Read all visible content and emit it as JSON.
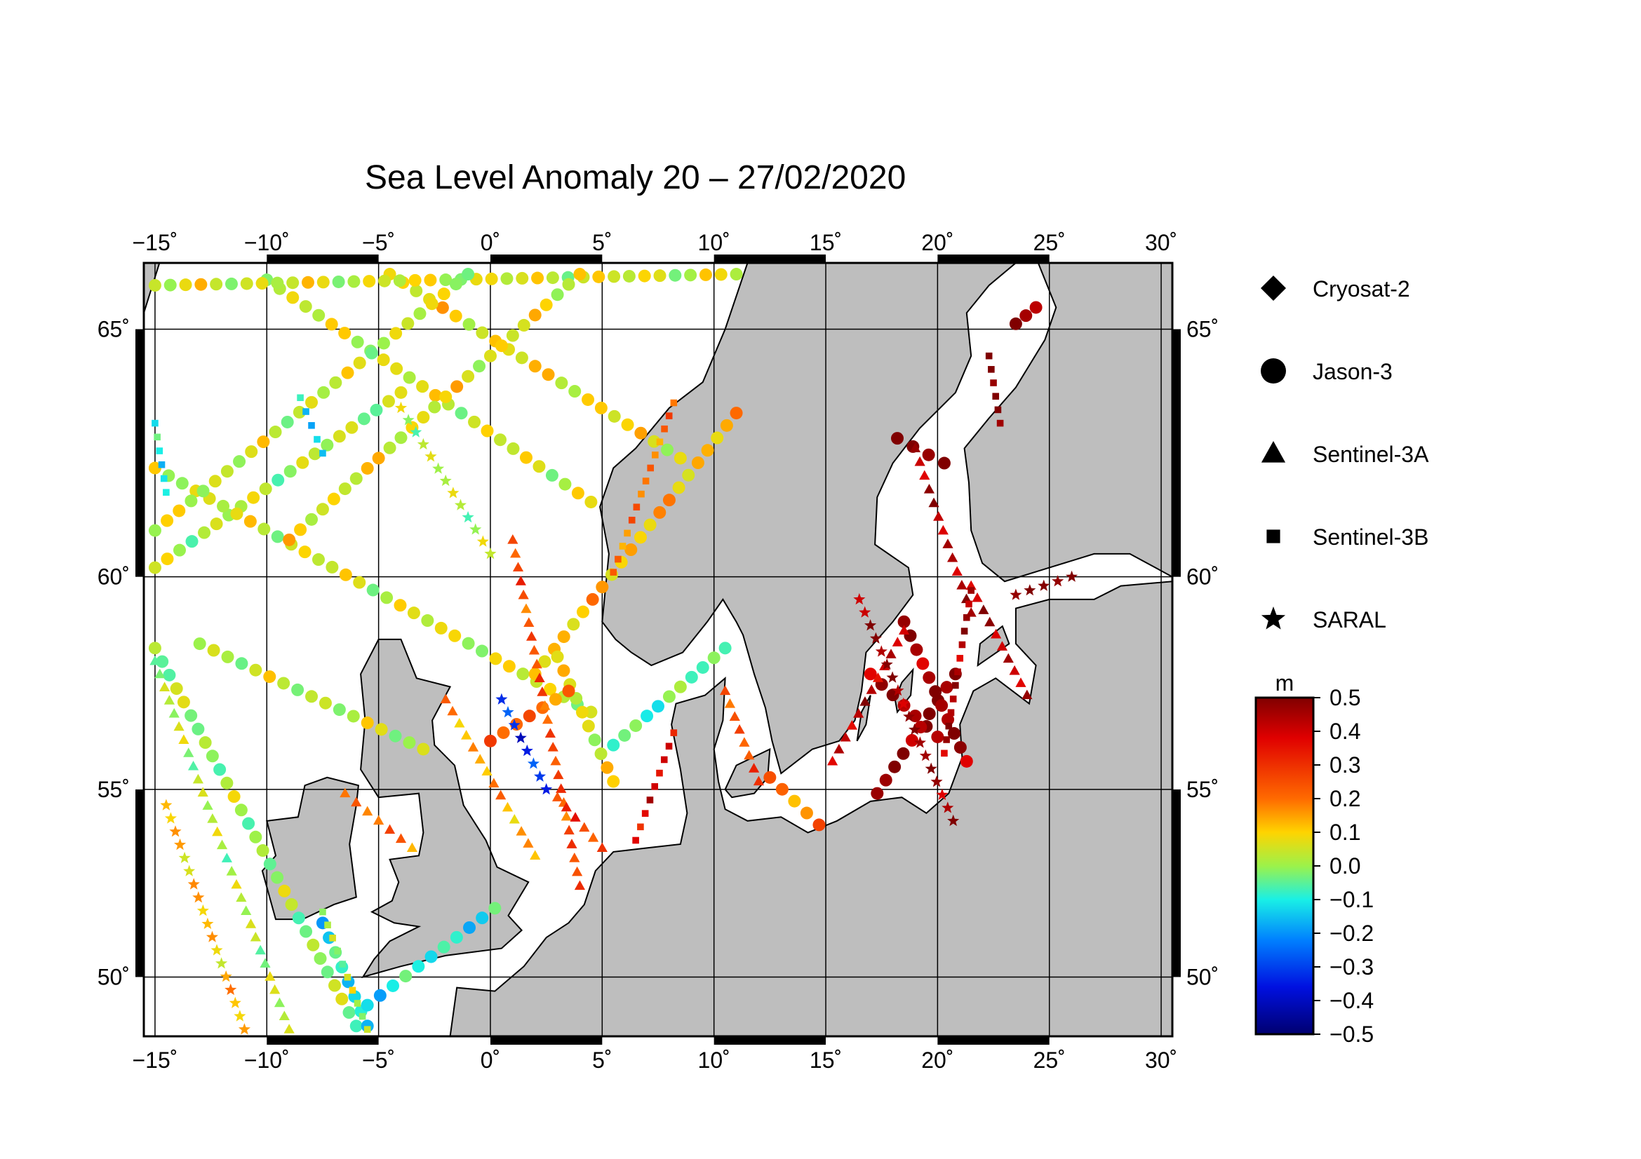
{
  "title": "Sea Level Anomaly 20 – 27/02/2020",
  "map": {
    "lon_range": [
      -15.5,
      30.5
    ],
    "lat_range": [
      48.3,
      66.2
    ],
    "lon_ticks": [
      -15,
      -10,
      -5,
      0,
      5,
      10,
      15,
      20,
      25,
      30
    ],
    "lat_ticks": [
      50,
      55,
      60,
      65
    ],
    "lon_tick_labels": [
      "−15˚",
      "−10˚",
      "−5˚",
      "0˚",
      "5˚",
      "10˚",
      "15˚",
      "20˚",
      "25˚",
      "30˚"
    ],
    "lat_tick_labels": [
      "50˚",
      "55˚",
      "60˚",
      "65˚"
    ],
    "land_color": "#bebebe",
    "sea_color": "#ffffff"
  },
  "legend": {
    "items": [
      {
        "label": "Cryosat-2",
        "symbol": "diamond"
      },
      {
        "label": "Jason-3",
        "symbol": "circle"
      },
      {
        "label": "Sentinel-3A",
        "symbol": "triangle"
      },
      {
        "label": "Sentinel-3B",
        "symbol": "square"
      },
      {
        "label": "SARAL",
        "symbol": "star"
      }
    ]
  },
  "colorbar": {
    "unit": "m",
    "min": -0.5,
    "max": 0.5,
    "tick_labels": [
      "0.5",
      "0.4",
      "0.3",
      "0.2",
      "0.1",
      "0.0",
      "−0.1",
      "−0.2",
      "−0.3",
      "−0.4",
      "−0.5"
    ]
  },
  "chart_data": {
    "type": "scatter",
    "title": "Sea Level Anomaly 20 – 27/02/2020",
    "xlabel": "",
    "ylabel": "",
    "xlim": [
      -15.5,
      30.5
    ],
    "ylim": [
      48.3,
      66.2
    ],
    "value_unit": "m",
    "value_range": [
      -0.5,
      0.5
    ],
    "tracks": [
      {
        "mission": "Jason-3",
        "from": [
          -15,
          60.2
        ],
        "to": [
          -4,
          63.8
        ],
        "value": 0.02
      },
      {
        "mission": "Jason-3",
        "from": [
          -15,
          62.3
        ],
        "to": [
          4.5,
          56.9
        ],
        "value": 0.05
      },
      {
        "mission": "Jason-3",
        "from": [
          -10,
          65.9
        ],
        "to": [
          4.5,
          61.6
        ],
        "value": 0.05
      },
      {
        "mission": "Jason-3",
        "from": [
          -4.5,
          66.0
        ],
        "to": [
          8.5,
          62.5
        ],
        "value": 0.08
      },
      {
        "mission": "Jason-3",
        "from": [
          -15,
          65.8
        ],
        "to": [
          11,
          66.0
        ],
        "value": 0.05
      },
      {
        "mission": "Jason-3",
        "from": [
          -15,
          61.0
        ],
        "to": [
          -1,
          66.0
        ],
        "value": 0.04
      },
      {
        "mission": "Jason-3",
        "from": [
          -9,
          60.8
        ],
        "to": [
          4,
          66.0
        ],
        "value": 0.07
      },
      {
        "mission": "Jason-3",
        "from": [
          2,
          57.8
        ],
        "to": [
          11,
          63.4
        ],
        "value": 0.12
      },
      {
        "mission": "Jason-3",
        "from": [
          -13,
          58.5
        ],
        "to": [
          -3,
          56.0
        ],
        "value": 0.03
      },
      {
        "mission": "Jason-3",
        "from": [
          -15,
          58.4
        ],
        "to": [
          -6,
          48.6
        ],
        "value": 0.0
      },
      {
        "mission": "Jason-3",
        "from": [
          -7.5,
          51.5
        ],
        "to": [
          -5.5,
          48.6
        ],
        "value": -0.12
      },
      {
        "mission": "Jason-3",
        "from": [
          3,
          58.2
        ],
        "to": [
          5.5,
          55.2
        ],
        "value": 0.06
      },
      {
        "mission": "Jason-3",
        "from": [
          0,
          56.2
        ],
        "to": [
          3.5,
          57.4
        ],
        "value": 0.22
      },
      {
        "mission": "Jason-3",
        "from": [
          5.5,
          56.1
        ],
        "to": [
          10.5,
          58.4
        ],
        "value": -0.05
      },
      {
        "mission": "Jason-3",
        "from": [
          12.5,
          55.3
        ],
        "to": [
          14.7,
          54.1
        ],
        "value": 0.2
      },
      {
        "mission": "Jason-3",
        "from": [
          -5.5,
          49.2
        ],
        "to": [
          0.2,
          51.9
        ],
        "value": -0.1
      },
      {
        "mission": "Jason-3",
        "from": [
          17,
          57.8
        ],
        "to": [
          20,
          56.3
        ],
        "value": 0.45
      },
      {
        "mission": "Jason-3",
        "from": [
          18.2,
          62.9
        ],
        "to": [
          20.3,
          62.4
        ],
        "value": 0.5
      },
      {
        "mission": "Jason-3",
        "from": [
          17.3,
          54.9
        ],
        "to": [
          20.8,
          57.8
        ],
        "value": 0.48
      },
      {
        "mission": "Jason-3",
        "from": [
          18.5,
          59.0
        ],
        "to": [
          21.3,
          55.7
        ],
        "value": 0.46
      },
      {
        "mission": "Jason-3",
        "from": [
          23.5,
          65.1
        ],
        "to": [
          24.4,
          65.4
        ],
        "value": 0.5
      },
      {
        "mission": "Sentinel-3A",
        "from": [
          -15,
          58.1
        ],
        "to": [
          -9,
          48.5
        ],
        "value": 0.02
      },
      {
        "mission": "Sentinel-3A",
        "from": [
          -6.5,
          54.9
        ],
        "to": [
          -3.5,
          53.5
        ],
        "value": 0.2
      },
      {
        "mission": "Sentinel-3A",
        "from": [
          1,
          60.8
        ],
        "to": [
          4,
          52.5
        ],
        "value": 0.25
      },
      {
        "mission": "Sentinel-3A",
        "from": [
          3,
          54.8
        ],
        "to": [
          5,
          53.5
        ],
        "value": 0.28
      },
      {
        "mission": "Sentinel-3A",
        "from": [
          -2,
          57.2
        ],
        "to": [
          2,
          53.3
        ],
        "value": 0.15
      },
      {
        "mission": "Sentinel-3A",
        "from": [
          10.5,
          57.4
        ],
        "to": [
          12,
          55.2
        ],
        "value": 0.25
      },
      {
        "mission": "Sentinel-3A",
        "from": [
          15.3,
          55.7
        ],
        "to": [
          18.5,
          58.8
        ],
        "value": 0.42
      },
      {
        "mission": "Sentinel-3A",
        "from": [
          19,
          62.7
        ],
        "to": [
          21.5,
          59.2
        ],
        "value": 0.44
      },
      {
        "mission": "Sentinel-3A",
        "from": [
          21.5,
          59.8
        ],
        "to": [
          24,
          57.3
        ],
        "value": 0.43
      },
      {
        "mission": "Sentinel-3B",
        "from": [
          -15,
          63.2
        ],
        "to": [
          -14.5,
          61.8
        ],
        "value": -0.12
      },
      {
        "mission": "Sentinel-3B",
        "from": [
          -8.5,
          63.7
        ],
        "to": [
          -7.5,
          62.6
        ],
        "value": -0.15
      },
      {
        "mission": "Sentinel-3B",
        "from": [
          -7.5,
          51.8
        ],
        "to": [
          -5.5,
          48.5
        ],
        "value": 0.02
      },
      {
        "mission": "Sentinel-3B",
        "from": [
          5.5,
          60.1
        ],
        "to": [
          8.2,
          63.6
        ],
        "value": 0.2
      },
      {
        "mission": "Sentinel-3B",
        "from": [
          6.5,
          53.7
        ],
        "to": [
          8.2,
          56.4
        ],
        "value": 0.38
      },
      {
        "mission": "Sentinel-3B",
        "from": [
          20.3,
          55.9
        ],
        "to": [
          21.5,
          59.7
        ],
        "value": 0.45
      },
      {
        "mission": "Sentinel-3B",
        "from": [
          22.3,
          64.5
        ],
        "to": [
          22.8,
          63.2
        ],
        "value": 0.5
      },
      {
        "mission": "SARAL",
        "from": [
          -14.5,
          54.6
        ],
        "to": [
          -11,
          48.5
        ],
        "value": 0.12
      },
      {
        "mission": "SARAL",
        "from": [
          0.5,
          57.2
        ],
        "to": [
          2.5,
          55.0
        ],
        "value": -0.32
      },
      {
        "mission": "SARAL",
        "from": [
          -4,
          63.5
        ],
        "to": [
          0,
          60.5
        ],
        "value": 0.02
      },
      {
        "mission": "SARAL",
        "from": [
          16.5,
          59.5
        ],
        "to": [
          20.7,
          54.2
        ],
        "value": 0.47
      },
      {
        "mission": "SARAL",
        "from": [
          23.5,
          59.6
        ],
        "to": [
          26,
          60.0
        ],
        "value": 0.5
      }
    ]
  }
}
